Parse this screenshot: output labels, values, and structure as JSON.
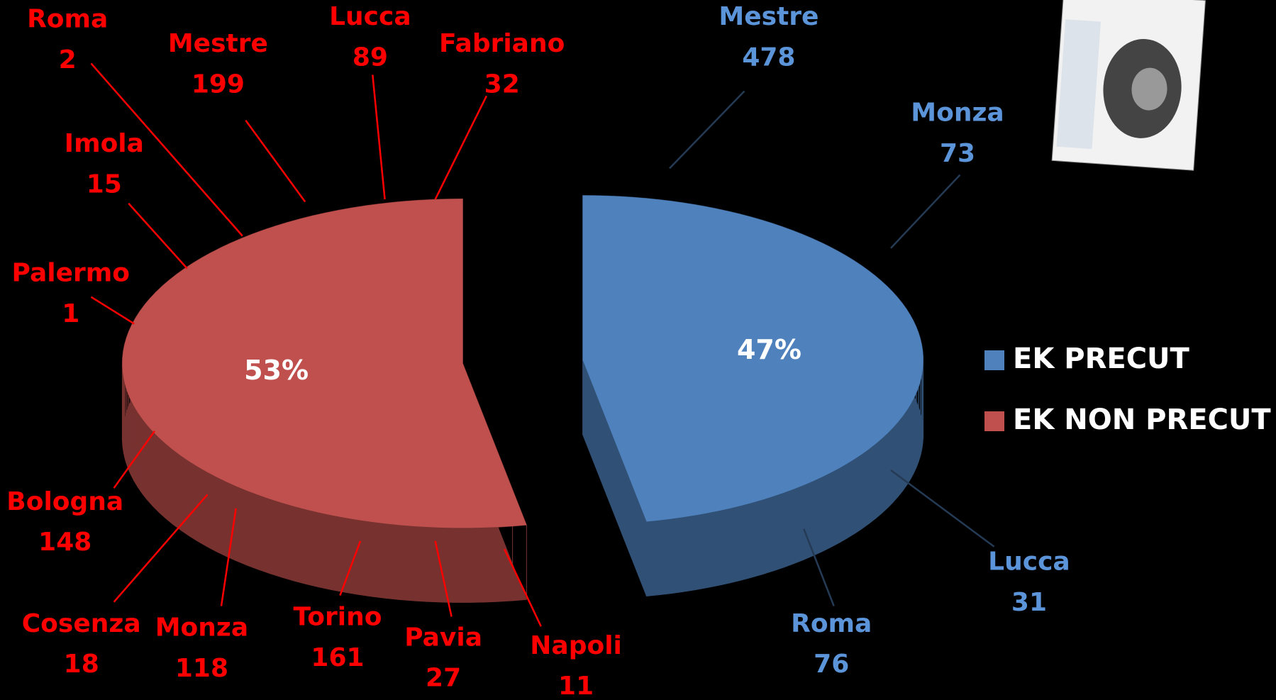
{
  "chart_data": {
    "type": "pie",
    "categories": [
      "EK PRECUT",
      "EK NON PRECUT"
    ],
    "values": [
      47,
      53
    ],
    "value_labels": [
      "47%",
      "53%"
    ],
    "colors": [
      "#4f81bd",
      "#c0504d"
    ],
    "legend": "right",
    "annotations": [
      {
        "label": "Roma",
        "value": 2,
        "color": "#ff0000"
      },
      {
        "label": "Mestre",
        "value": 199,
        "color": "#ff0000"
      },
      {
        "label": "Lucca",
        "value": 89,
        "color": "#ff0000"
      },
      {
        "label": "Fabriano",
        "value": 32,
        "color": "#ff0000"
      },
      {
        "label": "Imola",
        "value": 15,
        "color": "#ff0000"
      },
      {
        "label": "Palermo",
        "value": 1,
        "color": "#ff0000"
      },
      {
        "label": "Bologna",
        "value": 148,
        "color": "#ff0000"
      },
      {
        "label": "Cosenza",
        "value": 18,
        "color": "#ff0000"
      },
      {
        "label": "Monza",
        "value": 118,
        "color": "#ff0000"
      },
      {
        "label": "Torino",
        "value": 161,
        "color": "#ff0000"
      },
      {
        "label": "Pavia",
        "value": 27,
        "color": "#ff0000"
      },
      {
        "label": "Napoli",
        "value": 11,
        "color": "#ff0000"
      },
      {
        "label": "Mestre",
        "value": 478,
        "color": "#4f81bd"
      },
      {
        "label": "Monza",
        "value": 73,
        "color": "#4f81bd"
      },
      {
        "label": "Lucca",
        "value": 31,
        "color": "#4f81bd"
      },
      {
        "label": "Roma",
        "value": 76,
        "color": "#4f81bd"
      }
    ]
  }
}
